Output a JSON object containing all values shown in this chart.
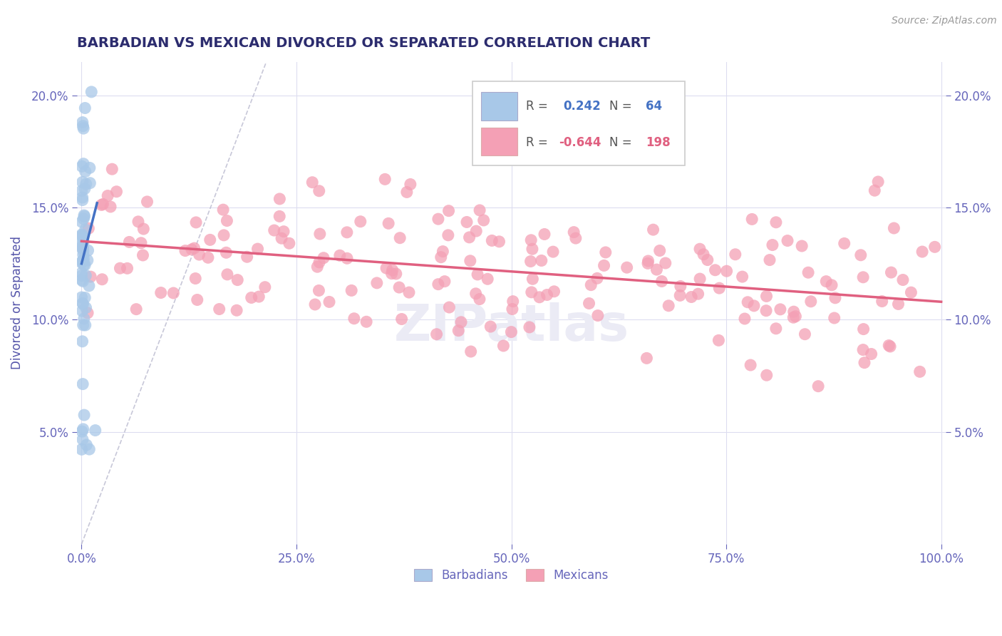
{
  "title": "BARBADIAN VS MEXICAN DIVORCED OR SEPARATED CORRELATION CHART",
  "source_text": "Source: ZipAtlas.com",
  "ylabel": "Divorced or Separated",
  "watermark": "ZIPatlas",
  "legend_blue_R": "0.242",
  "legend_blue_N": "64",
  "legend_pink_R": "-0.644",
  "legend_pink_N": "198",
  "blue_color": "#a8c8e8",
  "pink_color": "#f4a0b5",
  "blue_line_color": "#4472c4",
  "pink_line_color": "#e06080",
  "diag_line_color": "#b0b0c8",
  "title_color": "#2c2c6e",
  "axis_label_color": "#5555aa",
  "tick_color": "#6666bb",
  "source_color": "#999999",
  "background_color": "#ffffff",
  "grid_color": "#ddddf0",
  "xlim": [
    -0.005,
    1.005
  ],
  "ylim": [
    0.0,
    0.215
  ],
  "yticks": [
    0.05,
    0.1,
    0.15,
    0.2
  ],
  "ytick_labels": [
    "5.0%",
    "10.0%",
    "15.0%",
    "20.0%"
  ],
  "xticks": [
    0.0,
    0.25,
    0.5,
    0.75,
    1.0
  ],
  "xtick_labels": [
    "0.0%",
    "25.0%",
    "50.0%",
    "75.0%",
    "100.0%"
  ],
  "blue_trend_x": [
    0.0,
    0.018
  ],
  "blue_trend_y": [
    0.125,
    0.152
  ],
  "pink_trend_x": [
    0.0,
    1.0
  ],
  "pink_trend_y": [
    0.135,
    0.108
  ],
  "figsize": [
    14.06,
    8.92
  ],
  "dpi": 100,
  "blue_seed": 12,
  "pink_seed": 7
}
